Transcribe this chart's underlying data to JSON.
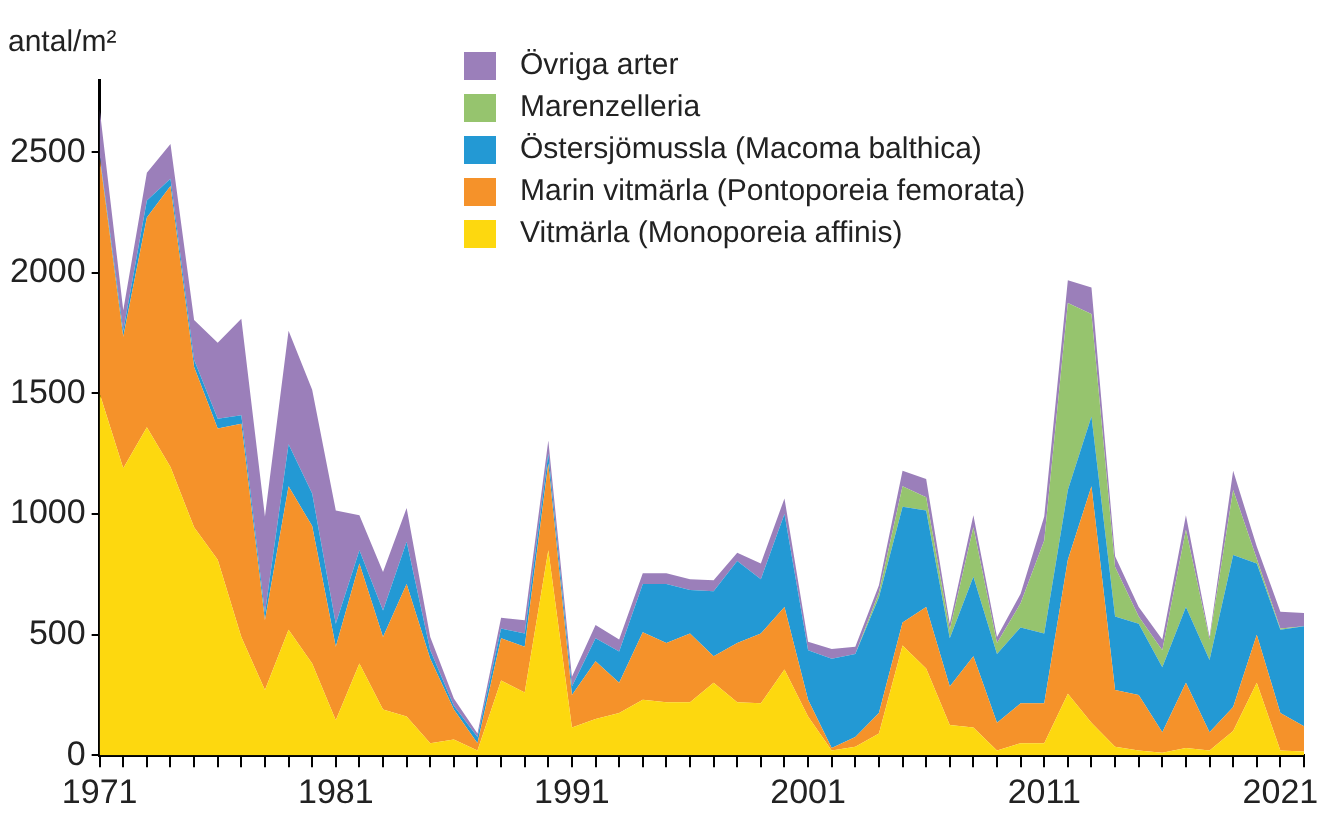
{
  "chart_data": {
    "type": "area",
    "stacked": true,
    "ylabel": "antal/m²",
    "legend": "top",
    "x": [
      1971,
      1972,
      1973,
      1974,
      1975,
      1976,
      1977,
      1978,
      1979,
      1980,
      1981,
      1982,
      1983,
      1984,
      1985,
      1986,
      1987,
      1988,
      1989,
      1990,
      1991,
      1992,
      1993,
      1994,
      1995,
      1996,
      1997,
      1998,
      1999,
      2000,
      2001,
      2002,
      2003,
      2004,
      2005,
      2006,
      2007,
      2008,
      2009,
      2010,
      2011,
      2012,
      2013,
      2014,
      2015,
      2016,
      2017,
      2018,
      2019,
      2020,
      2021,
      2022
    ],
    "xlim": [
      1971,
      2022
    ],
    "xticks": [
      1971,
      {
        "value": 1972,
        "label": null
      },
      {
        "value": 1973,
        "label": null
      },
      {
        "value": 1974,
        "label": null
      },
      {
        "value": 1975,
        "label": null
      },
      {
        "value": 1976,
        "label": null
      },
      {
        "value": 1977,
        "label": null
      },
      {
        "value": 1978,
        "label": null
      },
      {
        "value": 1979,
        "label": null
      },
      {
        "value": 1980,
        "label": null
      },
      1981,
      {
        "value": 1982,
        "label": null
      },
      {
        "value": 1983,
        "label": null
      },
      {
        "value": 1984,
        "label": null
      },
      {
        "value": 1985,
        "label": null
      },
      {
        "value": 1986,
        "label": null
      },
      {
        "value": 1987,
        "label": null
      },
      {
        "value": 1988,
        "label": null
      },
      {
        "value": 1989,
        "label": null
      },
      {
        "value": 1990,
        "label": null
      },
      1991,
      {
        "value": 1992,
        "label": null
      },
      {
        "value": 1993,
        "label": null
      },
      {
        "value": 1994,
        "label": null
      },
      {
        "value": 1995,
        "label": null
      },
      {
        "value": 1996,
        "label": null
      },
      {
        "value": 1997,
        "label": null
      },
      {
        "value": 1998,
        "label": null
      },
      {
        "value": 1999,
        "label": null
      },
      {
        "value": 2000,
        "label": null
      },
      2001,
      {
        "value": 2002,
        "label": null
      },
      {
        "value": 2003,
        "label": null
      },
      {
        "value": 2004,
        "label": null
      },
      {
        "value": 2005,
        "label": null
      },
      {
        "value": 2006,
        "label": null
      },
      {
        "value": 2007,
        "label": null
      },
      {
        "value": 2008,
        "label": null
      },
      {
        "value": 2009,
        "label": null
      },
      {
        "value": 2010,
        "label": null
      },
      2011,
      {
        "value": 2012,
        "label": null
      },
      {
        "value": 2013,
        "label": null
      },
      {
        "value": 2014,
        "label": null
      },
      {
        "value": 2015,
        "label": null
      },
      {
        "value": 2016,
        "label": null
      },
      {
        "value": 2017,
        "label": null
      },
      {
        "value": 2018,
        "label": null
      },
      {
        "value": 2019,
        "label": null
      },
      {
        "value": 2020,
        "label": null
      },
      2021,
      {
        "value": 2022,
        "label": null
      }
    ],
    "ylim": [
      0,
      2800
    ],
    "yticks": [
      0,
      500,
      1000,
      1500,
      2000,
      2500
    ],
    "grid": false,
    "series": [
      {
        "name": "Vitmärla (Monoporeia affinis)",
        "color": "#fdd80f",
        "values": [
          1500,
          1190,
          1360,
          1195,
          945,
          810,
          490,
          270,
          520,
          380,
          145,
          380,
          190,
          160,
          50,
          65,
          20,
          310,
          260,
          850,
          115,
          150,
          175,
          230,
          220,
          220,
          300,
          220,
          215,
          355,
          160,
          20,
          35,
          90,
          455,
          360,
          125,
          115,
          20,
          50,
          50,
          255,
          135,
          35,
          20,
          10,
          30,
          20,
          100,
          300,
          20,
          15
        ]
      },
      {
        "name": "Marin vitmärla (Pontoporeia femorata)",
        "color": "#f5922a",
        "values": [
          980,
          545,
          870,
          1165,
          665,
          545,
          885,
          290,
          595,
          570,
          305,
          415,
          300,
          550,
          350,
          125,
          30,
          175,
          190,
          360,
          135,
          240,
          125,
          280,
          245,
          285,
          110,
          245,
          290,
          260,
          70,
          10,
          40,
          85,
          95,
          255,
          160,
          295,
          115,
          165,
          165,
          555,
          980,
          235,
          230,
          85,
          270,
          75,
          100,
          200,
          155,
          105
        ]
      },
      {
        "name": "Östersjömussla (Macoma balthica)",
        "color": "#2399d4",
        "values": [
          10,
          25,
          70,
          30,
          30,
          40,
          35,
          30,
          175,
          135,
          95,
          55,
          110,
          175,
          35,
          15,
          25,
          40,
          55,
          40,
          35,
          95,
          130,
          200,
          245,
          180,
          270,
          340,
          225,
          385,
          205,
          370,
          345,
          480,
          480,
          400,
          200,
          330,
          285,
          315,
          290,
          290,
          290,
          305,
          295,
          270,
          315,
          300,
          630,
          295,
          345,
          415
        ]
      },
      {
        "name": "Marenzelleria",
        "color": "#96c46e",
        "values": [
          0,
          0,
          0,
          0,
          0,
          0,
          0,
          0,
          0,
          0,
          0,
          0,
          0,
          0,
          0,
          0,
          0,
          0,
          0,
          0,
          0,
          0,
          0,
          0,
          0,
          0,
          0,
          0,
          0,
          0,
          0,
          0,
          0,
          20,
          85,
          55,
          35,
          205,
          45,
          100,
          385,
          775,
          425,
          205,
          30,
          70,
          320,
          85,
          270,
          20,
          5,
          0
        ]
      },
      {
        "name": "Övriga arter",
        "color": "#9b7fba",
        "values": [
          190,
          85,
          115,
          145,
          165,
          315,
          400,
          400,
          470,
          430,
          470,
          145,
          160,
          140,
          55,
          30,
          15,
          45,
          55,
          55,
          40,
          55,
          50,
          45,
          45,
          45,
          45,
          35,
          65,
          65,
          35,
          40,
          30,
          30,
          65,
          75,
          25,
          50,
          25,
          40,
          100,
          95,
          110,
          45,
          40,
          45,
          60,
          10,
          80,
          50,
          70,
          55
        ]
      }
    ]
  }
}
